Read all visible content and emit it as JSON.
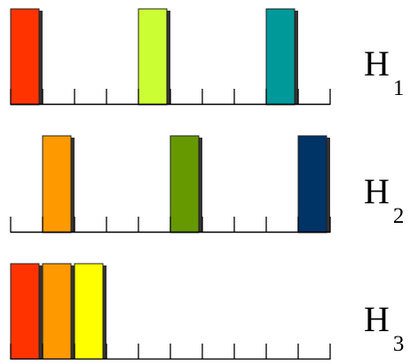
{
  "rows": [
    {
      "label_main": "H",
      "label_sub": "1",
      "tick_count": 10,
      "bars": [
        {
          "slot": 0,
          "color": "#ff3300"
        },
        {
          "slot": 4,
          "color": "#ccff33"
        },
        {
          "slot": 8,
          "color": "#009999"
        }
      ]
    },
    {
      "label_main": "H",
      "label_sub": "2",
      "tick_count": 10,
      "bars": [
        {
          "slot": 1,
          "color": "#ff9900"
        },
        {
          "slot": 5,
          "color": "#669900"
        },
        {
          "slot": 9,
          "color": "#003366"
        }
      ]
    },
    {
      "label_main": "H",
      "label_sub": "3",
      "tick_count": 10,
      "bars": [
        {
          "slot": 0,
          "color": "#ff3300"
        },
        {
          "slot": 1,
          "color": "#ff9900"
        },
        {
          "slot": 2,
          "color": "#ffff00"
        }
      ]
    }
  ],
  "colors": {
    "axis": "#000000",
    "bar_shadow": "#333333"
  }
}
